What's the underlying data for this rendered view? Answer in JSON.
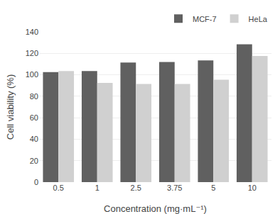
{
  "chart_data": {
    "type": "bar",
    "categories": [
      "0.5",
      "1",
      "2.5",
      "3.75",
      "5",
      "10"
    ],
    "series": [
      {
        "name": "MCF-7",
        "color": "#606060",
        "values": [
          102.5,
          103.5,
          111.5,
          112.0,
          113.5,
          128.5
        ]
      },
      {
        "name": "HeLa",
        "color": "#d0d0d0",
        "values": [
          103.5,
          92.5,
          91.5,
          91.5,
          95.5,
          117.5
        ]
      }
    ],
    "xlabel": "Concentration (mg·mL⁻¹)",
    "ylabel": "Cell viability (%)",
    "ylim": [
      0,
      140
    ],
    "yticks": [
      0,
      20,
      40,
      60,
      80,
      100,
      120,
      140
    ],
    "grid": true,
    "legend": "upper right"
  }
}
